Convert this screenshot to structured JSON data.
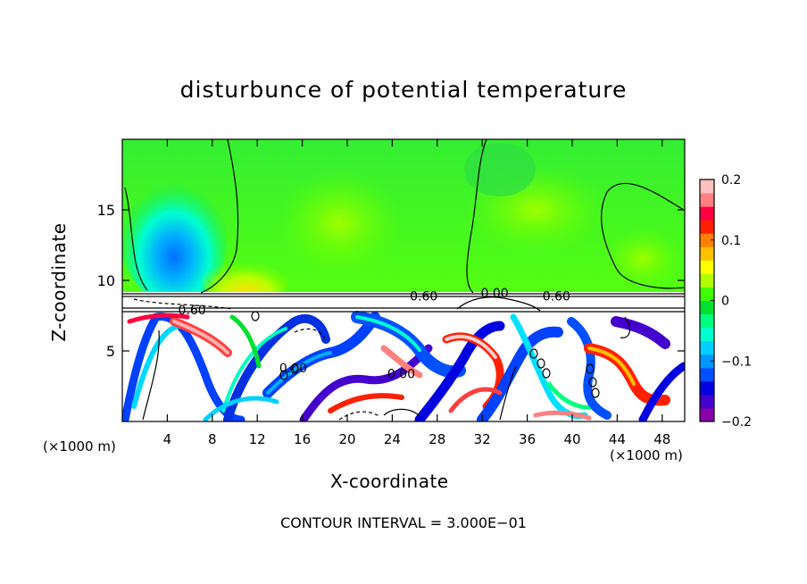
{
  "chart_data": {
    "type": "heatmap",
    "title": "disturbunce of potential temperature",
    "xlabel": "X-coordinate",
    "ylabel": "Z-coordinate",
    "x_unit_left": "(×1000 m)",
    "x_unit_right": "(×1000 m)",
    "xlim": [
      0,
      50
    ],
    "ylim": [
      0,
      20
    ],
    "x_ticks": [
      4,
      8,
      12,
      16,
      20,
      24,
      28,
      32,
      36,
      40,
      44,
      48
    ],
    "x_tick_labels": [
      "4",
      "8",
      "12",
      "16",
      "20",
      "24",
      "28",
      "32",
      "36",
      "40",
      "44",
      "48"
    ],
    "y_ticks": [
      5,
      10,
      15
    ],
    "y_tick_labels": [
      "5",
      "10",
      "15"
    ],
    "colorbar": {
      "range": [
        -0.2,
        0.2
      ],
      "ticks": [
        0.2,
        0.1,
        0,
        -0.1,
        -0.2
      ],
      "tick_labels": [
        "0.2",
        "0.1",
        "0",
        "−0.1",
        "−0.2"
      ],
      "colors": [
        "#8800aa",
        "#4400cc",
        "#0000e0",
        "#0050ff",
        "#0096ff",
        "#00d0ff",
        "#00ffd0",
        "#00ff80",
        "#00e030",
        "#40ff00",
        "#b0ff00",
        "#ffff00",
        "#ffc000",
        "#ff8000",
        "#ff2000",
        "#ff0040",
        "#ff8080",
        "#ffc0c0"
      ]
    },
    "contour_labels": [
      {
        "text": "0.60",
        "x": 26.8,
        "z": 8.9
      },
      {
        "text": "0.00",
        "x": 33.1,
        "z": 9.1
      },
      {
        "text": "0.60",
        "x": 38.6,
        "z": 8.9
      },
      {
        "text": "0.60",
        "x": 6.2,
        "z": 7.9
      },
      {
        "text": "0.00",
        "x": 15.2,
        "z": 3.8
      },
      {
        "text": "0.00",
        "x": 24.8,
        "z": 3.4
      }
    ],
    "contour_interval_text": "CONTOUR INTERVAL = 3.000E−01"
  }
}
